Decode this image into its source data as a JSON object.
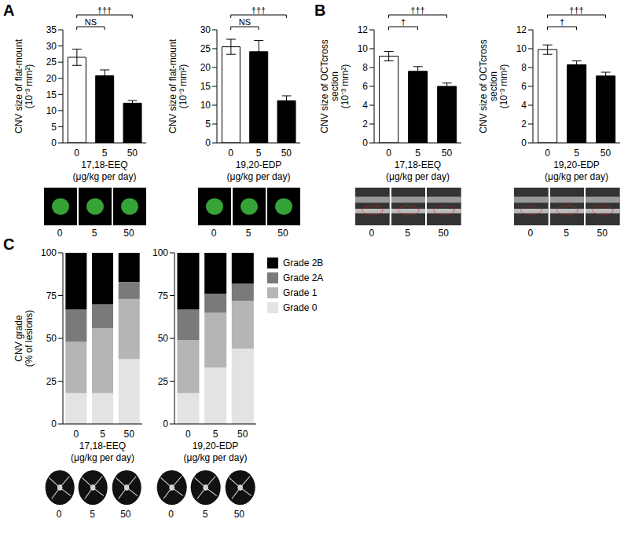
{
  "chart_data": [
    {
      "type": "bar",
      "panel_label": "A",
      "y_label": [
        "CNV size of flat-mount",
        "(10⁻³ mm²)"
      ],
      "x_label": "17,18-EEQ",
      "x_sublabel": "(μg/kg per day)",
      "categories": [
        "0",
        "5",
        "50"
      ],
      "values": [
        26.5,
        20.8,
        12.3
      ],
      "errors": [
        2.5,
        1.8,
        0.8
      ],
      "colors": [
        "#ffffff",
        "#000000",
        "#000000"
      ],
      "ylim": [
        0,
        35
      ],
      "yticks": [
        0,
        5,
        10,
        15,
        20,
        25,
        30,
        35
      ],
      "annotations": [
        {
          "text": "NS",
          "from": 0,
          "to": 1
        },
        {
          "text": "†††",
          "from": 0,
          "to": 2
        }
      ]
    },
    {
      "type": "bar",
      "y_label": [
        "CNV size of flat-mount",
        "(10⁻³ mm²)"
      ],
      "x_label": "19,20-EDP",
      "x_sublabel": "(μg/kg per day)",
      "categories": [
        "0",
        "5",
        "50"
      ],
      "values": [
        25.5,
        24.2,
        11.2
      ],
      "errors": [
        2.0,
        3.0,
        1.3
      ],
      "colors": [
        "#ffffff",
        "#000000",
        "#000000"
      ],
      "ylim": [
        0,
        30
      ],
      "yticks": [
        0,
        5,
        10,
        15,
        20,
        25,
        30
      ],
      "annotations": [
        {
          "text": "NS",
          "from": 0,
          "to": 1
        },
        {
          "text": "†††",
          "from": 0,
          "to": 2
        }
      ]
    },
    {
      "type": "bar",
      "panel_label": "B",
      "y_label": [
        "CNV size of OCTcross",
        "section",
        "(10⁻³ mm²)"
      ],
      "x_label": "17,18-EEQ",
      "x_sublabel": "(μg/kg per day)",
      "categories": [
        "0",
        "5",
        "50"
      ],
      "values": [
        9.2,
        7.6,
        6.0
      ],
      "errors": [
        0.5,
        0.5,
        0.35
      ],
      "colors": [
        "#ffffff",
        "#000000",
        "#000000"
      ],
      "ylim": [
        0,
        12
      ],
      "yticks": [
        0,
        2,
        4,
        6,
        8,
        10,
        12
      ],
      "annotations": [
        {
          "text": "†",
          "from": 0,
          "to": 1
        },
        {
          "text": "†††",
          "from": 0,
          "to": 2
        }
      ]
    },
    {
      "type": "bar",
      "y_label": [
        "CNV size of OCTcross",
        "section",
        "(10⁻³ mm²)"
      ],
      "x_label": "19,20-EDP",
      "x_sublabel": "(μg/kg per day)",
      "categories": [
        "0",
        "5",
        "50"
      ],
      "values": [
        9.9,
        8.3,
        7.1
      ],
      "errors": [
        0.5,
        0.4,
        0.4
      ],
      "colors": [
        "#ffffff",
        "#000000",
        "#000000"
      ],
      "ylim": [
        0,
        12
      ],
      "yticks": [
        0,
        2,
        4,
        6,
        8,
        10,
        12
      ],
      "annotations": [
        {
          "text": "†",
          "from": 0,
          "to": 1
        },
        {
          "text": "†††",
          "from": 0,
          "to": 2
        }
      ]
    },
    {
      "type": "bar",
      "stacked": true,
      "panel_label": "C",
      "y_label": [
        "CNV grade",
        "(% of lesions)"
      ],
      "x_label": "17,18-EEQ",
      "x_sublabel": "(μg/kg per day)",
      "categories": [
        "0",
        "5",
        "50"
      ],
      "series": [
        {
          "name": "Grade 0",
          "color": "#e3e3e3",
          "values": [
            18,
            18,
            38
          ]
        },
        {
          "name": "Grade 1",
          "color": "#b5b5b5",
          "values": [
            30,
            38,
            35
          ]
        },
        {
          "name": "Grade 2A",
          "color": "#7a7a7a",
          "values": [
            19,
            14,
            10
          ]
        },
        {
          "name": "Grade 2B",
          "color": "#000000",
          "values": [
            33,
            30,
            17
          ]
        }
      ],
      "ylim": [
        0,
        100
      ],
      "yticks": [
        0,
        25,
        50,
        75,
        100
      ]
    },
    {
      "type": "bar",
      "stacked": true,
      "legend": "right",
      "x_label": "19,20-EDP",
      "x_sublabel": "(μg/kg per day)",
      "categories": [
        "0",
        "5",
        "50"
      ],
      "series": [
        {
          "name": "Grade 0",
          "color": "#e3e3e3",
          "values": [
            18,
            33,
            44
          ]
        },
        {
          "name": "Grade 1",
          "color": "#b5b5b5",
          "values": [
            31,
            32,
            28
          ]
        },
        {
          "name": "Grade 2A",
          "color": "#7a7a7a",
          "values": [
            18,
            11,
            10
          ]
        },
        {
          "name": "Grade 2B",
          "color": "#000000",
          "values": [
            33,
            24,
            18
          ]
        }
      ],
      "ylim": [
        0,
        100
      ],
      "yticks": [
        0,
        25,
        50,
        75,
        100
      ]
    }
  ]
}
